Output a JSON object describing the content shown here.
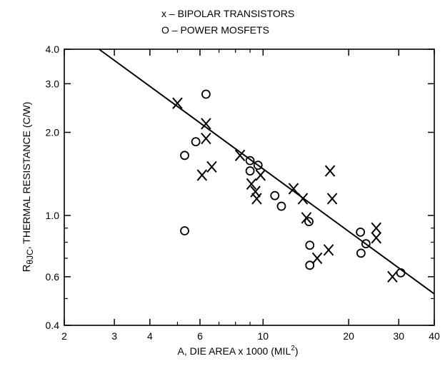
{
  "chart_data": {
    "type": "scatter",
    "title": "",
    "xlabel_main": "A, DIE AREA x 1000 (MIL",
    "xlabel_sup": "2",
    "xlabel_end": ")",
    "ylabel_r": "R",
    "ylabel_sub": "θJC",
    "ylabel_rest": ", THERMAL RESISTANCE (C/W)",
    "x_scale": "log",
    "y_scale": "log",
    "xlim": [
      2,
      40
    ],
    "ylim": [
      0.4,
      4.0
    ],
    "x_ticks": [
      2,
      3,
      4,
      6,
      10,
      20,
      30,
      40
    ],
    "x_tick_labels": [
      "2",
      "3",
      "4",
      "6",
      "10",
      "20",
      "30",
      "40"
    ],
    "x_minor_ticks": [
      5,
      7,
      8,
      9
    ],
    "y_ticks": [
      0.4,
      0.6,
      1.0,
      2.0,
      3.0,
      4.0
    ],
    "y_tick_labels": [
      "0.4",
      "0.6",
      "1.0",
      "2.0",
      "3.0",
      "4.0"
    ],
    "y_minor_ticks": [
      0.5,
      0.7,
      0.8,
      0.9
    ],
    "grid": false,
    "legend": {
      "position": "top-center",
      "entries": [
        "x – BIPOLAR TRANSISTORS",
        "O – POWER MOSFETS"
      ]
    },
    "trend_line": {
      "x": [
        2.65,
        40
      ],
      "y": [
        4.0,
        0.52
      ]
    },
    "series": [
      {
        "name": "x – BIPOLAR TRANSISTORS",
        "marker": "x",
        "x": [
          5.0,
          6.1,
          6.3,
          6.3,
          6.6,
          8.3,
          9.1,
          9.4,
          9.5,
          9.8,
          12.8,
          13.8,
          14.2,
          15.5,
          17.0,
          17.2,
          17.5,
          25.0,
          25.0,
          28.5
        ],
        "y": [
          2.55,
          1.4,
          2.15,
          1.9,
          1.5,
          1.65,
          1.3,
          1.22,
          1.15,
          1.4,
          1.25,
          1.15,
          0.98,
          0.7,
          0.75,
          1.45,
          1.15,
          0.9,
          0.83,
          0.6
        ]
      },
      {
        "name": "O – POWER MOSFETS",
        "marker": "o",
        "x": [
          5.3,
          5.3,
          5.8,
          6.3,
          9.0,
          9.0,
          9.6,
          11.0,
          11.6,
          14.5,
          14.6,
          14.6,
          22.0,
          22.1,
          23.0,
          30.5
        ],
        "y": [
          1.65,
          0.88,
          1.85,
          2.75,
          1.58,
          1.45,
          1.52,
          1.18,
          1.08,
          0.95,
          0.78,
          0.66,
          0.87,
          0.73,
          0.79,
          0.62
        ]
      }
    ]
  }
}
